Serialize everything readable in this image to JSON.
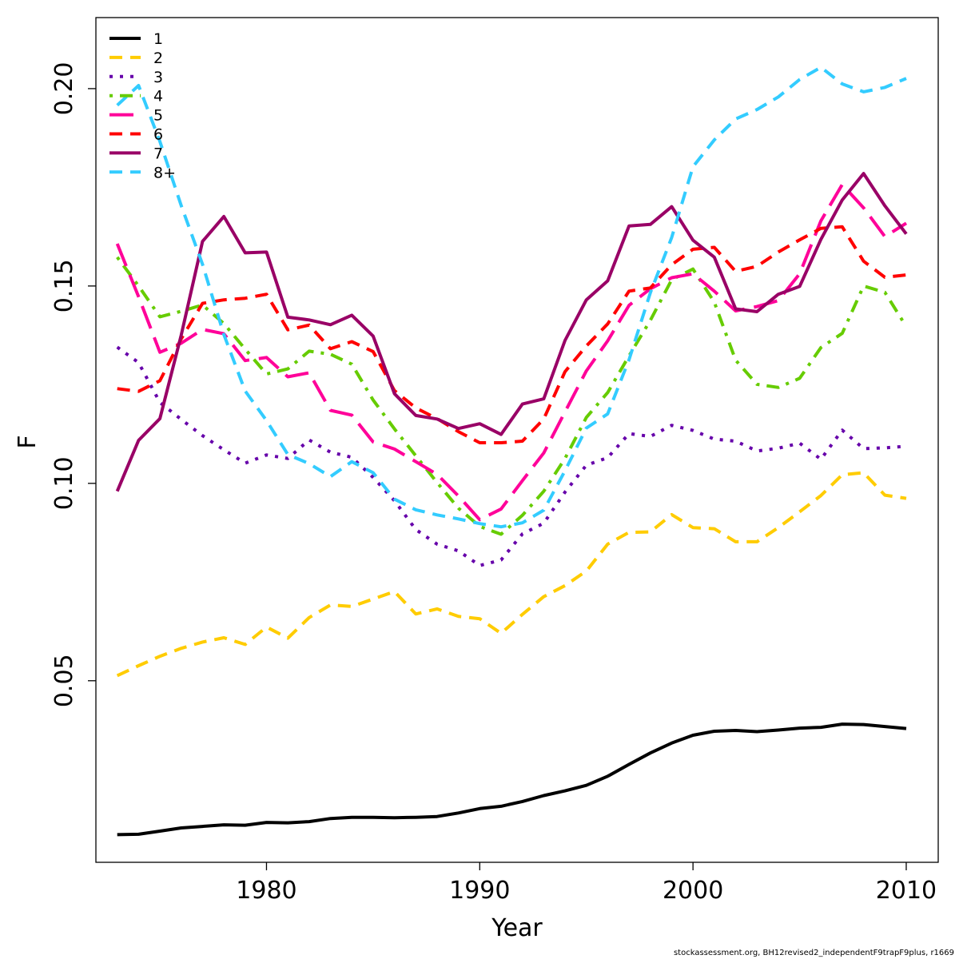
{
  "chart_data": {
    "type": "line",
    "title": "",
    "xlabel": "Year",
    "ylabel": "F",
    "xlim": [
      1972,
      2011.5
    ],
    "ylim": [
      0.004,
      0.218
    ],
    "xticks": [
      1980,
      1990,
      2000,
      2010
    ],
    "xtick_labels": [
      "1980",
      "1990",
      "2000",
      "2010"
    ],
    "yticks": [
      0.05,
      0.1,
      0.15,
      0.2
    ],
    "ytick_labels": [
      "0.05",
      "0.10",
      "0.15",
      "0.20"
    ],
    "grid": false,
    "legend_position": "top-left",
    "x": [
      1973,
      1974,
      1975,
      1976,
      1977,
      1978,
      1979,
      1980,
      1981,
      1982,
      1983,
      1984,
      1985,
      1986,
      1987,
      1988,
      1989,
      1990,
      1991,
      1992,
      1993,
      1994,
      1995,
      1996,
      1997,
      1998,
      1999,
      2000,
      2001,
      2002,
      2003,
      2004,
      2005,
      2006,
      2007,
      2008,
      2009,
      2010
    ],
    "series": [
      {
        "name": "1",
        "color": "#000000",
        "dash": "solid",
        "values": [
          0.011,
          0.0111,
          0.0119,
          0.0127,
          0.0131,
          0.0135,
          0.0134,
          0.0141,
          0.014,
          0.0143,
          0.0151,
          0.0154,
          0.0154,
          0.0153,
          0.0154,
          0.0156,
          0.0165,
          0.0176,
          0.0182,
          0.0194,
          0.0209,
          0.0221,
          0.0235,
          0.0258,
          0.0288,
          0.0317,
          0.0342,
          0.0362,
          0.0372,
          0.0374,
          0.0371,
          0.0375,
          0.038,
          0.0382,
          0.039,
          0.0389,
          0.0384,
          0.0379
        ]
      },
      {
        "name": "2",
        "color": "#ffcc00",
        "dash": "dashed",
        "values": [
          0.0513,
          0.0538,
          0.0562,
          0.0582,
          0.0598,
          0.0609,
          0.0592,
          0.0636,
          0.0608,
          0.066,
          0.0692,
          0.0688,
          0.0707,
          0.0726,
          0.0669,
          0.0682,
          0.0663,
          0.0657,
          0.062,
          0.0668,
          0.0713,
          0.0741,
          0.0778,
          0.0846,
          0.0876,
          0.0877,
          0.0921,
          0.0888,
          0.0885,
          0.0852,
          0.0852,
          0.0888,
          0.0928,
          0.0969,
          0.1022,
          0.1027,
          0.097,
          0.0962
        ]
      },
      {
        "name": "3",
        "color": "#6600aa",
        "dash": "dotted",
        "values": [
          0.1345,
          0.1306,
          0.1205,
          0.1162,
          0.1121,
          0.1085,
          0.1051,
          0.1072,
          0.1063,
          0.111,
          0.1079,
          0.1066,
          0.1015,
          0.0956,
          0.0883,
          0.0846,
          0.0829,
          0.0792,
          0.0806,
          0.0872,
          0.0899,
          0.0978,
          0.1046,
          0.1065,
          0.1126,
          0.1119,
          0.1147,
          0.1134,
          0.1112,
          0.1107,
          0.1082,
          0.1089,
          0.1102,
          0.1061,
          0.1135,
          0.1088,
          0.109,
          0.1094
        ]
      },
      {
        "name": "4",
        "color": "#66cc00",
        "dash": "dotdash",
        "values": [
          0.1573,
          0.15,
          0.1422,
          0.1436,
          0.1452,
          0.1405,
          0.134,
          0.1277,
          0.129,
          0.1335,
          0.1327,
          0.1302,
          0.1211,
          0.1138,
          0.107,
          0.1002,
          0.0937,
          0.0891,
          0.0871,
          0.0919,
          0.098,
          0.1063,
          0.1167,
          0.123,
          0.1323,
          0.1413,
          0.1516,
          0.1543,
          0.1459,
          0.1312,
          0.1251,
          0.1243,
          0.1266,
          0.1344,
          0.138,
          0.15,
          0.1484,
          0.1397
        ]
      },
      {
        "name": "5",
        "color": "#ff0099",
        "dash": "longdash",
        "values": [
          0.1607,
          0.1473,
          0.1332,
          0.1355,
          0.139,
          0.1379,
          0.1311,
          0.1319,
          0.127,
          0.128,
          0.1185,
          0.1173,
          0.1105,
          0.1087,
          0.1055,
          0.1023,
          0.0968,
          0.0908,
          0.0935,
          0.1007,
          0.1077,
          0.1181,
          0.1285,
          0.1361,
          0.1451,
          0.1493,
          0.1521,
          0.1531,
          0.1487,
          0.1437,
          0.1448,
          0.1463,
          0.1531,
          0.1665,
          0.1757,
          0.1698,
          0.1625,
          0.1659
        ]
      },
      {
        "name": "6",
        "color": "#ff0000",
        "dash": "dashed",
        "values": [
          0.124,
          0.1233,
          0.126,
          0.1366,
          0.1456,
          0.1465,
          0.1469,
          0.1479,
          0.1389,
          0.1401,
          0.1341,
          0.1359,
          0.1334,
          0.1235,
          0.1191,
          0.1164,
          0.1131,
          0.1103,
          0.1103,
          0.1107,
          0.1163,
          0.1283,
          0.1348,
          0.1404,
          0.1487,
          0.1495,
          0.1554,
          0.1593,
          0.1598,
          0.1537,
          0.155,
          0.1586,
          0.1617,
          0.1646,
          0.165,
          0.1563,
          0.1522,
          0.1528
        ]
      },
      {
        "name": "7",
        "color": "#990066",
        "dash": "solid",
        "values": [
          0.098,
          0.1109,
          0.1164,
          0.1375,
          0.1613,
          0.1676,
          0.1584,
          0.1586,
          0.1421,
          0.1414,
          0.1402,
          0.1426,
          0.1373,
          0.1227,
          0.1172,
          0.1163,
          0.1139,
          0.1151,
          0.1124,
          0.1201,
          0.1214,
          0.1362,
          0.1465,
          0.1513,
          0.1652,
          0.1656,
          0.1701,
          0.1616,
          0.1573,
          0.1442,
          0.1435,
          0.1479,
          0.1499,
          0.1618,
          0.1718,
          0.1785,
          0.1703,
          0.1632
        ]
      },
      {
        "name": "8+",
        "color": "#33ccff",
        "dash": "dashed",
        "values": [
          0.1958,
          0.2008,
          0.1866,
          0.1704,
          0.1555,
          0.1377,
          0.1234,
          0.1159,
          0.1073,
          0.105,
          0.1017,
          0.1055,
          0.1027,
          0.096,
          0.0933,
          0.092,
          0.091,
          0.0898,
          0.089,
          0.09,
          0.0932,
          0.1032,
          0.114,
          0.1176,
          0.1313,
          0.1483,
          0.1623,
          0.1802,
          0.187,
          0.1923,
          0.1947,
          0.1979,
          0.2023,
          0.2054,
          0.2012,
          0.1992,
          0.2003,
          0.2026
        ]
      }
    ]
  },
  "footer": {
    "text": "stockassessment.org, BH12revised2_independentF9trapF9plus, r1669"
  }
}
